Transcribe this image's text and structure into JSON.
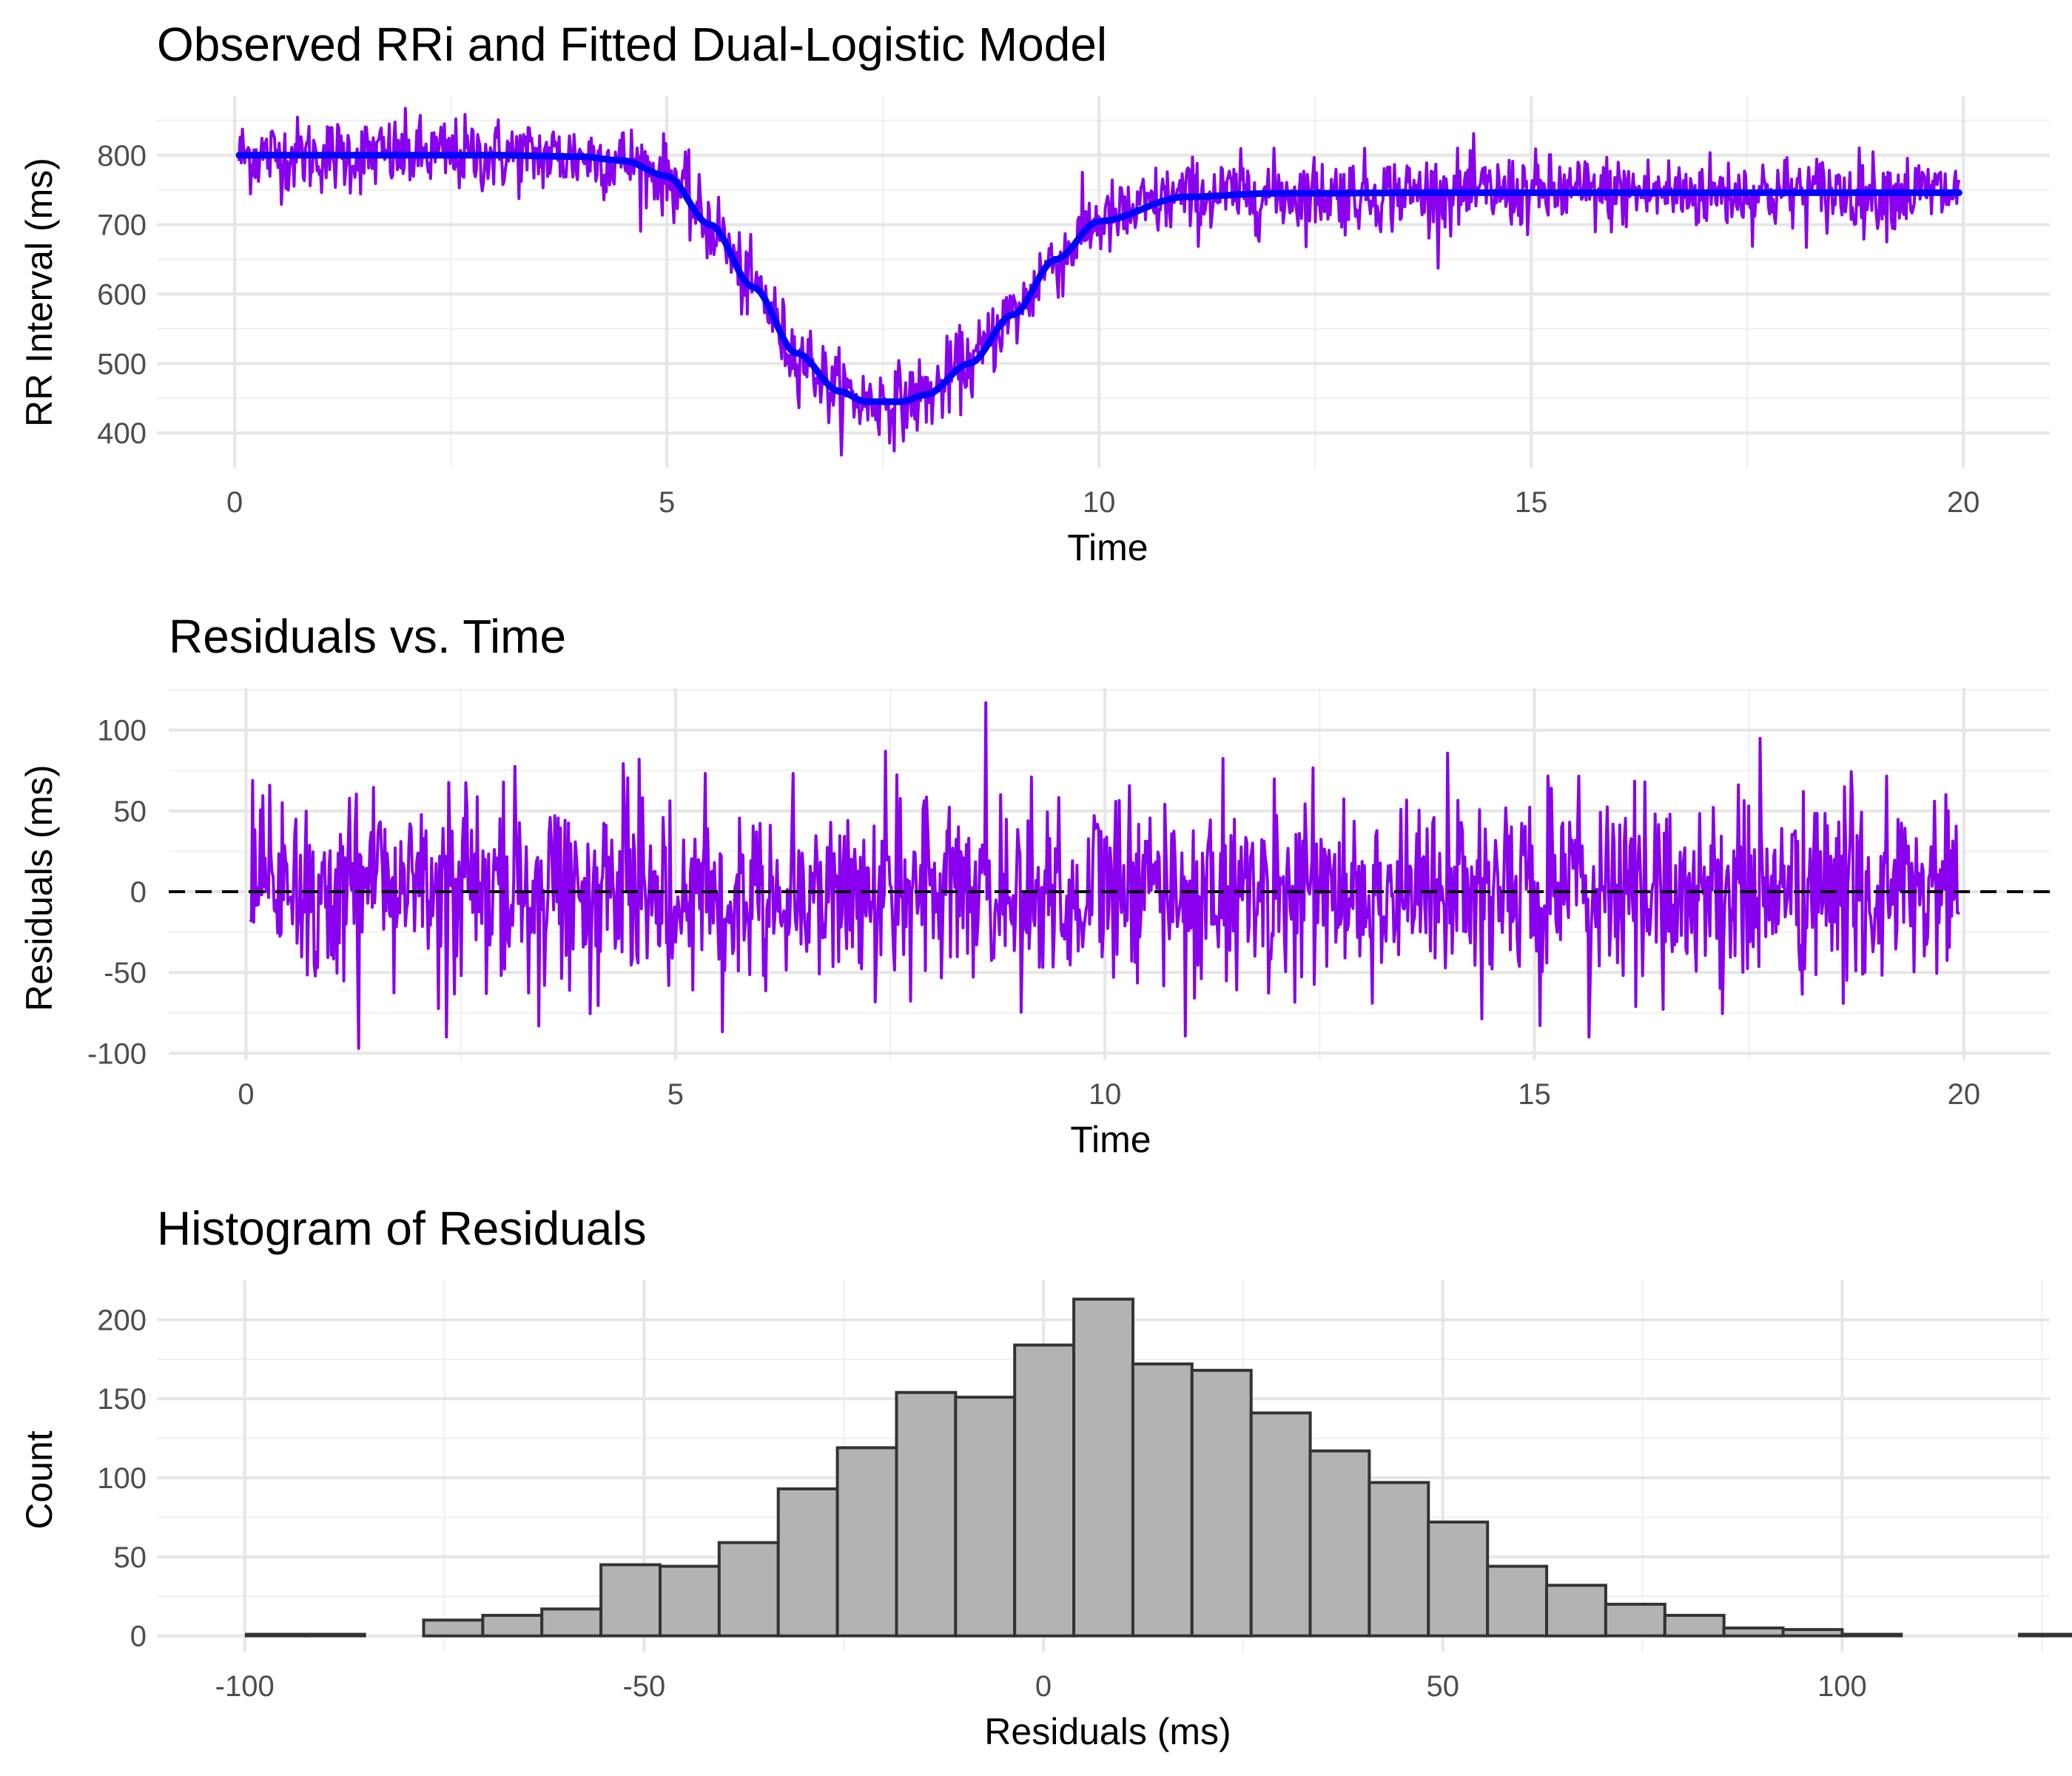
{
  "colors": {
    "observed": "#8800ee",
    "fitted": "#0000ff",
    "residuals": "#8800ee",
    "zero_line": "#000000",
    "bar_fill": "#b3b3b3",
    "bar_stroke": "#333333"
  },
  "chart_data": [
    {
      "type": "line",
      "title": "Observed RRi and Fitted Dual-Logistic Model",
      "xlabel": "Time",
      "ylabel": "RR Interval (ms)",
      "xlim": [
        -0.9,
        21
      ],
      "ylim": [
        350,
        885
      ],
      "xticks": [
        0,
        5,
        10,
        15,
        20
      ],
      "yticks": [
        400,
        500,
        600,
        700,
        800
      ],
      "xtick_labels": [
        "0",
        "5",
        "10",
        "15",
        "20"
      ],
      "ytick_labels": [
        "400",
        "500",
        "600",
        "700",
        "800"
      ],
      "grid": true,
      "legend": "none",
      "series": [
        {
          "role": "observed",
          "note": "noisy RR intervals, approx. 1500 samples (0.01 s to 20 s); noise sd about 28 ms",
          "x": [
            0.05,
            1,
            2,
            3,
            4,
            4.5,
            5,
            5.5,
            6,
            6.5,
            7,
            7.3,
            7.7,
            8,
            8.5,
            9,
            9.5,
            10,
            11,
            12,
            14,
            16,
            18,
            20
          ],
          "y": [
            800,
            800,
            800,
            800,
            798,
            792,
            770,
            700,
            610,
            515,
            460,
            445,
            445,
            455,
            500,
            570,
            650,
            705,
            740,
            745,
            746,
            746,
            746,
            746
          ]
        },
        {
          "role": "fitted",
          "note": "fitted dual-logistic curve",
          "x": [
            0.05,
            1,
            2,
            3,
            4,
            4.5,
            5,
            5.5,
            6,
            6.5,
            7,
            7.3,
            7.7,
            8,
            8.5,
            9,
            9.5,
            10,
            11,
            12,
            14,
            16,
            18,
            20
          ],
          "y": [
            800,
            800,
            800,
            800,
            798,
            792,
            770,
            700,
            610,
            515,
            460,
            445,
            445,
            455,
            500,
            570,
            650,
            705,
            740,
            745,
            746,
            746,
            746,
            746
          ]
        }
      ]
    },
    {
      "type": "line",
      "title": "Residuals vs. Time",
      "xlabel": "Time",
      "ylabel": "Residuals (ms)",
      "xlim": [
        -0.9,
        21
      ],
      "ylim": [
        -104,
        126
      ],
      "xticks": [
        0,
        5,
        10,
        15,
        20
      ],
      "yticks": [
        -100,
        -50,
        0,
        50,
        100
      ],
      "xtick_labels": [
        "0",
        "5",
        "10",
        "15",
        "20"
      ],
      "ytick_labels": [
        "-100",
        "-50",
        "0",
        "50",
        "100"
      ],
      "grid": true,
      "legend": "none",
      "reference_line": {
        "y": 0,
        "style": "dashed"
      },
      "series": [
        {
          "role": "residuals",
          "note": "residuals of the fit, approx. 1500 samples; range about -97 to 117",
          "x_range": [
            0.05,
            19.95
          ],
          "y_range": [
            -97,
            117
          ]
        }
      ]
    },
    {
      "type": "bar",
      "title": "Histogram of Residuals",
      "xlabel": "Residuals (ms)",
      "ylabel": "Count",
      "xlim": [
        -111,
        126
      ],
      "ylim": [
        -10,
        225
      ],
      "xticks": [
        -100,
        -50,
        0,
        50,
        100
      ],
      "yticks": [
        0,
        50,
        100,
        150,
        200
      ],
      "xtick_labels": [
        "-100",
        "-50",
        "0",
        "50",
        "100"
      ],
      "ytick_labels": [
        "0",
        "50",
        "100",
        "150",
        "200"
      ],
      "grid": true,
      "legend": "none",
      "bin_width": 7.4,
      "bin_start": -99.8,
      "values": [
        1,
        1,
        0,
        10,
        13,
        17,
        45,
        44,
        59,
        93,
        119,
        154,
        151,
        184,
        213,
        172,
        168,
        141,
        117,
        97,
        72,
        44,
        32,
        20,
        13,
        5,
        4,
        1,
        0,
        0,
        1
      ]
    }
  ]
}
